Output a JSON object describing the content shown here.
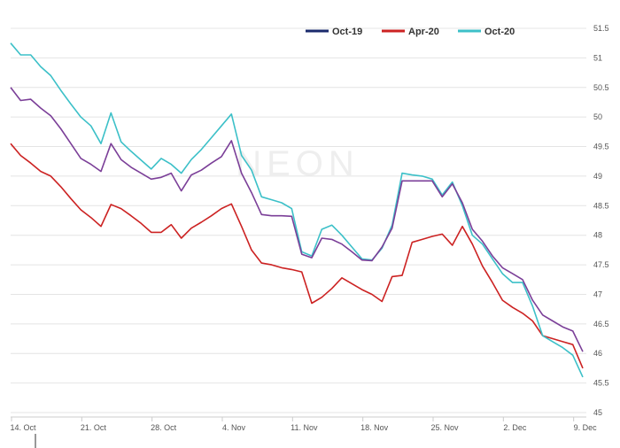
{
  "watermark": "NEON",
  "chart_data": {
    "type": "line",
    "title": "",
    "xlabel": "",
    "ylabel": "",
    "ylim": [
      45,
      51.5
    ],
    "y_ticks": [
      45,
      45.5,
      46,
      46.5,
      47,
      47.5,
      48,
      48.5,
      49,
      49.5,
      50,
      50.5,
      51,
      51.5
    ],
    "x_ticks": [
      {
        "label": "14. Oct",
        "day": 0
      },
      {
        "label": "21. Oct",
        "day": 7
      },
      {
        "label": "28. Oct",
        "day": 14
      },
      {
        "label": "4. Nov",
        "day": 21
      },
      {
        "label": "11. Nov",
        "day": 28
      },
      {
        "label": "18. Nov",
        "day": 35
      },
      {
        "label": "25. Nov",
        "day": 42
      },
      {
        "label": "2. Dec",
        "day": 49
      },
      {
        "label": "9. Dec",
        "day": 56
      }
    ],
    "x_range_days": [
      0,
      57
    ],
    "grid": "horizontal",
    "legend_position": "top-right",
    "series": [
      {
        "name": "Oct-19",
        "color": "#1a2a6c",
        "points": []
      },
      {
        "name": "Apr-20",
        "color": "#cc2222",
        "points": [
          [
            0,
            49.55
          ],
          [
            1,
            49.35
          ],
          [
            2,
            49.22
          ],
          [
            3,
            49.08
          ],
          [
            4,
            49.0
          ],
          [
            5,
            48.82
          ],
          [
            6,
            48.62
          ],
          [
            7,
            48.43
          ],
          [
            8,
            48.3
          ],
          [
            9,
            48.15
          ],
          [
            10,
            48.52
          ],
          [
            11,
            48.45
          ],
          [
            12,
            48.33
          ],
          [
            13,
            48.2
          ],
          [
            14,
            48.05
          ],
          [
            15,
            48.05
          ],
          [
            16,
            48.18
          ],
          [
            17,
            47.95
          ],
          [
            18,
            48.12
          ],
          [
            19,
            48.22
          ],
          [
            20,
            48.33
          ],
          [
            21,
            48.45
          ],
          [
            22,
            48.53
          ],
          [
            23,
            48.15
          ],
          [
            24,
            47.75
          ],
          [
            25,
            47.53
          ],
          [
            26,
            47.5
          ],
          [
            27,
            47.45
          ],
          [
            28,
            47.42
          ],
          [
            29,
            47.38
          ],
          [
            30,
            46.85
          ],
          [
            31,
            46.95
          ],
          [
            32,
            47.1
          ],
          [
            33,
            47.28
          ],
          [
            34,
            47.18
          ],
          [
            35,
            47.08
          ],
          [
            36,
            47.0
          ],
          [
            37,
            46.88
          ],
          [
            38,
            47.3
          ],
          [
            39,
            47.32
          ],
          [
            40,
            47.88
          ],
          [
            41,
            47.93
          ],
          [
            42,
            47.98
          ],
          [
            43,
            48.02
          ],
          [
            44,
            47.83
          ],
          [
            45,
            48.15
          ],
          [
            46,
            47.85
          ],
          [
            47,
            47.48
          ],
          [
            48,
            47.2
          ],
          [
            49,
            46.9
          ],
          [
            50,
            46.78
          ],
          [
            51,
            46.68
          ],
          [
            52,
            46.55
          ],
          [
            53,
            46.3
          ],
          [
            54,
            46.25
          ],
          [
            55,
            46.2
          ],
          [
            56,
            46.15
          ],
          [
            57,
            45.75
          ]
        ]
      },
      {
        "name": "Oct-20",
        "color": "#3cc0c8",
        "points": [
          [
            0,
            51.25
          ],
          [
            1,
            51.05
          ],
          [
            2,
            51.05
          ],
          [
            3,
            50.85
          ],
          [
            4,
            50.7
          ],
          [
            5,
            50.45
          ],
          [
            6,
            50.22
          ],
          [
            7,
            50.0
          ],
          [
            8,
            49.85
          ],
          [
            9,
            49.55
          ],
          [
            10,
            50.07
          ],
          [
            11,
            49.58
          ],
          [
            12,
            49.42
          ],
          [
            13,
            49.27
          ],
          [
            14,
            49.12
          ],
          [
            15,
            49.3
          ],
          [
            16,
            49.2
          ],
          [
            17,
            49.05
          ],
          [
            18,
            49.28
          ],
          [
            19,
            49.45
          ],
          [
            20,
            49.65
          ],
          [
            21,
            49.85
          ],
          [
            22,
            50.05
          ],
          [
            23,
            49.35
          ],
          [
            24,
            49.1
          ],
          [
            25,
            48.65
          ],
          [
            26,
            48.6
          ],
          [
            27,
            48.55
          ],
          [
            28,
            48.45
          ],
          [
            29,
            47.72
          ],
          [
            30,
            47.65
          ],
          [
            31,
            48.1
          ],
          [
            32,
            48.17
          ],
          [
            33,
            48.0
          ],
          [
            34,
            47.8
          ],
          [
            35,
            47.6
          ],
          [
            36,
            47.58
          ],
          [
            37,
            47.78
          ],
          [
            38,
            48.17
          ],
          [
            39,
            49.05
          ],
          [
            40,
            49.02
          ],
          [
            41,
            49.0
          ],
          [
            42,
            48.95
          ],
          [
            43,
            48.68
          ],
          [
            44,
            48.9
          ],
          [
            45,
            48.5
          ],
          [
            46,
            48.0
          ],
          [
            47,
            47.85
          ],
          [
            48,
            47.6
          ],
          [
            49,
            47.35
          ],
          [
            50,
            47.2
          ],
          [
            51,
            47.2
          ],
          [
            52,
            46.8
          ],
          [
            53,
            46.3
          ],
          [
            54,
            46.2
          ],
          [
            55,
            46.1
          ],
          [
            56,
            45.97
          ],
          [
            57,
            45.6
          ]
        ]
      },
      {
        "name": "",
        "color": "#7b3f98",
        "points": [
          [
            0,
            50.5
          ],
          [
            1,
            50.28
          ],
          [
            2,
            50.3
          ],
          [
            3,
            50.15
          ],
          [
            4,
            50.02
          ],
          [
            5,
            49.8
          ],
          [
            6,
            49.55
          ],
          [
            7,
            49.3
          ],
          [
            8,
            49.2
          ],
          [
            9,
            49.08
          ],
          [
            10,
            49.55
          ],
          [
            11,
            49.28
          ],
          [
            12,
            49.15
          ],
          [
            13,
            49.05
          ],
          [
            14,
            48.95
          ],
          [
            15,
            48.98
          ],
          [
            16,
            49.05
          ],
          [
            17,
            48.75
          ],
          [
            18,
            49.02
          ],
          [
            19,
            49.1
          ],
          [
            20,
            49.22
          ],
          [
            21,
            49.33
          ],
          [
            22,
            49.6
          ],
          [
            23,
            49.05
          ],
          [
            24,
            48.72
          ],
          [
            25,
            48.35
          ],
          [
            26,
            48.33
          ],
          [
            27,
            48.33
          ],
          [
            28,
            48.32
          ],
          [
            29,
            47.68
          ],
          [
            30,
            47.62
          ],
          [
            31,
            47.95
          ],
          [
            32,
            47.93
          ],
          [
            33,
            47.85
          ],
          [
            34,
            47.72
          ],
          [
            35,
            47.58
          ],
          [
            36,
            47.57
          ],
          [
            37,
            47.8
          ],
          [
            38,
            48.12
          ],
          [
            39,
            48.92
          ],
          [
            40,
            48.92
          ],
          [
            41,
            48.92
          ],
          [
            42,
            48.92
          ],
          [
            43,
            48.65
          ],
          [
            44,
            48.87
          ],
          [
            45,
            48.55
          ],
          [
            46,
            48.1
          ],
          [
            47,
            47.9
          ],
          [
            48,
            47.65
          ],
          [
            49,
            47.45
          ],
          [
            50,
            47.35
          ],
          [
            51,
            47.25
          ],
          [
            52,
            46.9
          ],
          [
            53,
            46.65
          ],
          [
            54,
            46.55
          ],
          [
            55,
            46.45
          ],
          [
            56,
            46.38
          ],
          [
            57,
            46.03
          ]
        ]
      }
    ]
  }
}
